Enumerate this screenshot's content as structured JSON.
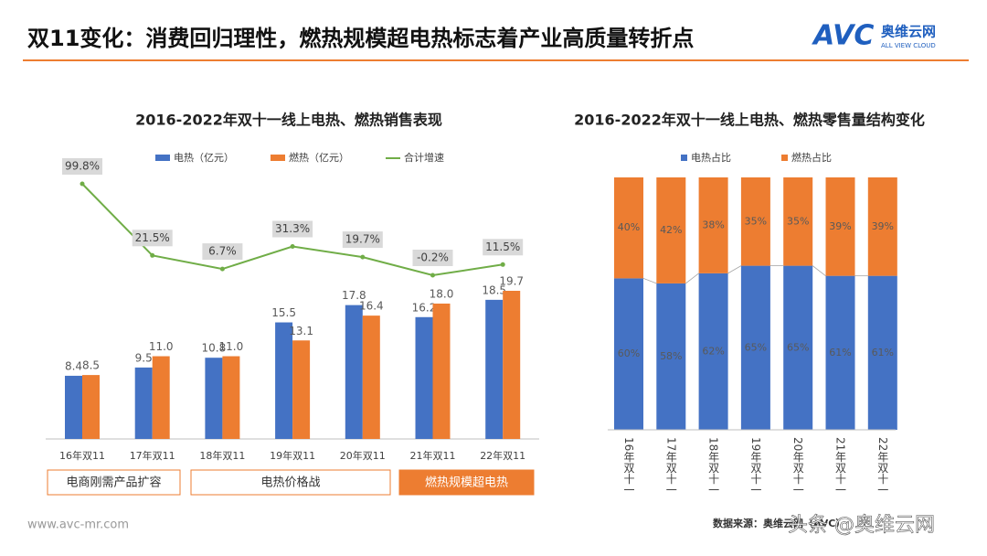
{
  "header": {
    "title": "双11变化：消费回归理性，燃热规模超电热标志着产业高质量转折点",
    "logo": "AVC",
    "brand": "奥维云网",
    "brand_en": "ALL VIEW CLOUD"
  },
  "chart_data": [
    {
      "type": "bar",
      "title": "2016-2022年双十一线上电热、燃热销售表现",
      "categories": [
        "16年双11",
        "17年双11",
        "18年双11",
        "19年双11",
        "20年双11",
        "21年双11",
        "22年双11"
      ],
      "series": [
        {
          "name": "电热（亿元）",
          "color": "#4472c4",
          "values": [
            8.4,
            9.5,
            10.8,
            15.5,
            17.8,
            16.2,
            18.5
          ]
        },
        {
          "name": "燃热（亿元）",
          "color": "#ed7d31",
          "values": [
            8.5,
            11.0,
            11.0,
            13.1,
            16.4,
            18.0,
            19.7
          ],
          "value_labels": [
            "8.5",
            "11.0",
            "11.0",
            "13.1",
            "16.4",
            "18.0",
            "19.7"
          ]
        },
        {
          "name": "合计增速",
          "type": "line",
          "color": "#70ad47",
          "values": [
            99.8,
            21.5,
            6.7,
            31.3,
            19.7,
            -0.2,
            11.5
          ],
          "value_labels": [
            "99.8%",
            "21.5%",
            "6.7%",
            "31.3%",
            "19.7%",
            "-0.2%",
            "11.5%"
          ]
        }
      ],
      "annotations": [
        "电商刚需产品扩容",
        "电热价格战",
        "燃热规模超电热"
      ]
    },
    {
      "type": "stacked_bar",
      "title": "2016-2022年双十一线上电热、燃热零售量结构变化",
      "categories": [
        "16年双十一",
        "17年双十一",
        "18年双十一",
        "19年双十一",
        "20年双十一",
        "21年双十一",
        "22年双十一"
      ],
      "series": [
        {
          "name": "电热占比",
          "color": "#4472c4",
          "values": [
            60,
            58,
            62,
            65,
            65,
            61,
            61
          ],
          "value_labels": [
            "60%",
            "58%",
            "62%",
            "65%",
            "65%",
            "61%",
            "61%"
          ]
        },
        {
          "name": "燃热占比",
          "color": "#ed7d31",
          "values": [
            40,
            42,
            38,
            35,
            35,
            39,
            39
          ],
          "value_labels": [
            "40%",
            "42%",
            "38%",
            "35%",
            "35%",
            "39%",
            "39%"
          ]
        }
      ]
    }
  ],
  "footer": {
    "website": "www.avc-mr.com",
    "source": "数据来源：奥维云网（AVC）",
    "watermark": "头条 @奥维云网"
  }
}
